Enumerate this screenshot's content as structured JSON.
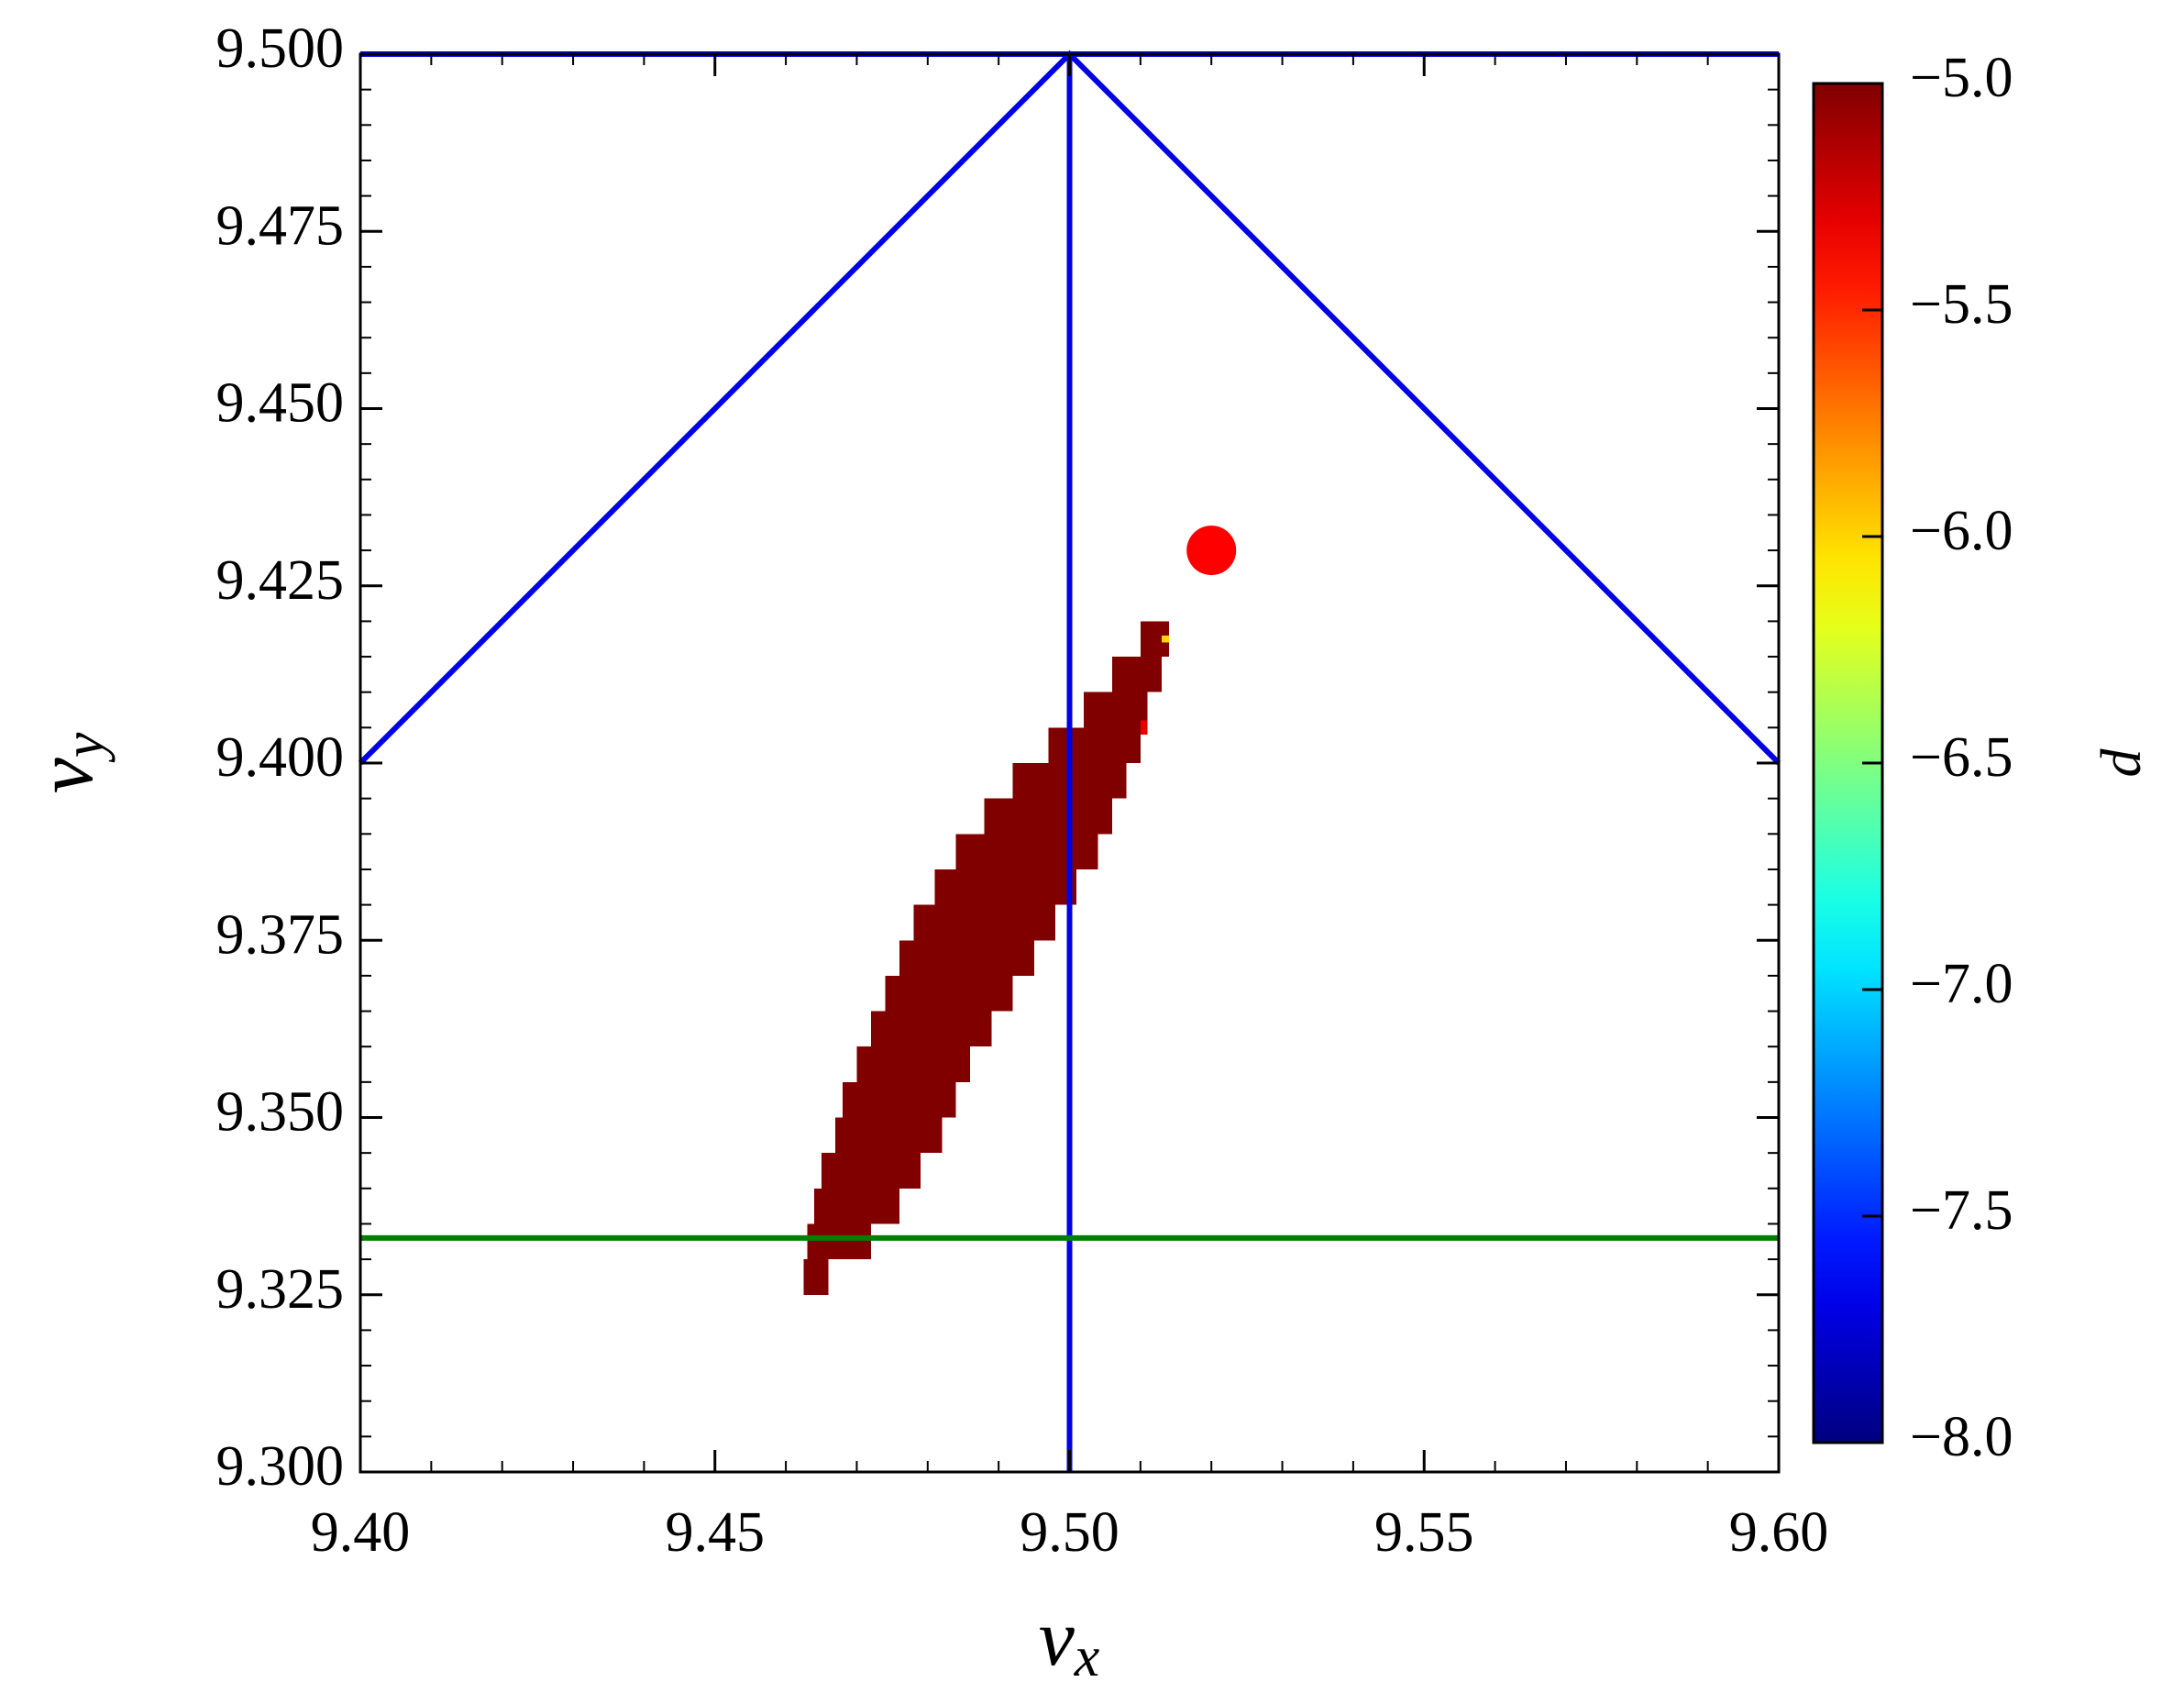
{
  "chart_data": {
    "type": "tune-diagram",
    "xlabel": {
      "symbol": "ν",
      "subscript": "x"
    },
    "ylabel": {
      "symbol": "ν",
      "subscript": "y"
    },
    "colorbar_label": "d",
    "colormap": "jet",
    "clim": [
      -8,
      -5
    ],
    "xlim": [
      9.4,
      9.6
    ],
    "ylim": [
      9.3,
      9.5
    ],
    "xticks": [
      {
        "value": 9.4,
        "label": "9.40"
      },
      {
        "value": 9.45,
        "label": "9.45"
      },
      {
        "value": 9.5,
        "label": "9.50"
      },
      {
        "value": 9.55,
        "label": "9.55"
      },
      {
        "value": 9.6,
        "label": "9.60"
      }
    ],
    "yticks": [
      {
        "value": 9.3,
        "label": "9.300"
      },
      {
        "value": 9.325,
        "label": "9.325"
      },
      {
        "value": 9.35,
        "label": "9.350"
      },
      {
        "value": 9.375,
        "label": "9.375"
      },
      {
        "value": 9.4,
        "label": "9.400"
      },
      {
        "value": 9.425,
        "label": "9.425"
      },
      {
        "value": 9.45,
        "label": "9.450"
      },
      {
        "value": 9.475,
        "label": "9.475"
      },
      {
        "value": 9.5,
        "label": "9.500"
      }
    ],
    "xminorticks": [
      9.41,
      9.42,
      9.43,
      9.44,
      9.46,
      9.47,
      9.48,
      9.49,
      9.51,
      9.52,
      9.53,
      9.54,
      9.56,
      9.57,
      9.58,
      9.59
    ],
    "yminorticks": [
      9.305,
      9.31,
      9.315,
      9.32,
      9.33,
      9.335,
      9.34,
      9.345,
      9.355,
      9.36,
      9.365,
      9.37,
      9.38,
      9.385,
      9.39,
      9.395,
      9.405,
      9.41,
      9.415,
      9.42,
      9.43,
      9.435,
      9.44,
      9.445,
      9.455,
      9.46,
      9.465,
      9.47,
      9.48,
      9.485,
      9.49,
      9.495
    ],
    "colorbar_ticks": [
      {
        "value": -5,
        "label": "−5.0"
      },
      {
        "value": -5.5,
        "label": "−5.5"
      },
      {
        "value": -6,
        "label": "−6.0"
      },
      {
        "value": -6.5,
        "label": "−6.5"
      },
      {
        "value": -7,
        "label": "−7.0"
      },
      {
        "value": -7.5,
        "label": "−7.5"
      },
      {
        "value": -8,
        "label": "−8.0"
      }
    ],
    "cells": [
      {
        "y": [
          9.325,
          9.33
        ],
        "x": [
          9.4625,
          9.466
        ],
        "value": -5
      },
      {
        "y": [
          9.33,
          9.335
        ],
        "x": [
          9.463,
          9.472
        ],
        "value": -5
      },
      {
        "y": [
          9.335,
          9.34
        ],
        "x": [
          9.464,
          9.476
        ],
        "value": -5
      },
      {
        "y": [
          9.34,
          9.345
        ],
        "x": [
          9.465,
          9.479
        ],
        "value": -5
      },
      {
        "y": [
          9.345,
          9.35
        ],
        "x": [
          9.467,
          9.482
        ],
        "value": -5
      },
      {
        "y": [
          9.35,
          9.355
        ],
        "x": [
          9.468,
          9.484
        ],
        "value": -5
      },
      {
        "y": [
          9.355,
          9.36
        ],
        "x": [
          9.47,
          9.486
        ],
        "value": -5
      },
      {
        "y": [
          9.36,
          9.365
        ],
        "x": [
          9.472,
          9.489
        ],
        "value": -5
      },
      {
        "y": [
          9.365,
          9.37
        ],
        "x": [
          9.474,
          9.492
        ],
        "value": -5
      },
      {
        "y": [
          9.37,
          9.375
        ],
        "x": [
          9.476,
          9.495
        ],
        "value": -5
      },
      {
        "y": [
          9.375,
          9.38
        ],
        "x": [
          9.478,
          9.498
        ],
        "value": -5
      },
      {
        "y": [
          9.38,
          9.385
        ],
        "x": [
          9.481,
          9.501
        ],
        "value": -5
      },
      {
        "y": [
          9.385,
          9.39
        ],
        "x": [
          9.484,
          9.504
        ],
        "value": -5
      },
      {
        "y": [
          9.39,
          9.395
        ],
        "x": [
          9.488,
          9.506
        ],
        "value": -5
      },
      {
        "y": [
          9.395,
          9.4
        ],
        "x": [
          9.492,
          9.508
        ],
        "value": -5
      },
      {
        "y": [
          9.4,
          9.405
        ],
        "x": [
          9.497,
          9.51
        ],
        "value": -5
      },
      {
        "y": [
          9.405,
          9.41
        ],
        "x": [
          9.502,
          9.511
        ],
        "value": -5
      },
      {
        "y": [
          9.41,
          9.415
        ],
        "x": [
          9.506,
          9.513
        ],
        "value": -5
      },
      {
        "y": [
          9.415,
          9.42
        ],
        "x": [
          9.51,
          9.514
        ],
        "value": -5
      },
      {
        "y": [
          9.404,
          9.406
        ],
        "x": [
          9.51,
          9.511
        ],
        "value": -5.3
      },
      {
        "y": [
          9.417,
          9.418
        ],
        "x": [
          9.513,
          9.514
        ],
        "value": -6
      }
    ],
    "lines": [
      {
        "color": "#0000e6",
        "x": [
          9.4,
          9.6
        ],
        "y": [
          9.5,
          9.5
        ]
      },
      {
        "color": "#0000e6",
        "x": [
          9.4,
          9.5,
          9.6
        ],
        "y": [
          9.4,
          9.5,
          9.4
        ]
      },
      {
        "color": "#0000e6",
        "x": [
          9.5,
          9.5
        ],
        "y": [
          9.3,
          9.5
        ]
      },
      {
        "color": "#007f00",
        "x": [
          9.4,
          9.6
        ],
        "y": [
          9.333,
          9.333
        ]
      }
    ],
    "point": {
      "x": 9.52,
      "y": 9.43,
      "color": "#ff0000"
    }
  }
}
